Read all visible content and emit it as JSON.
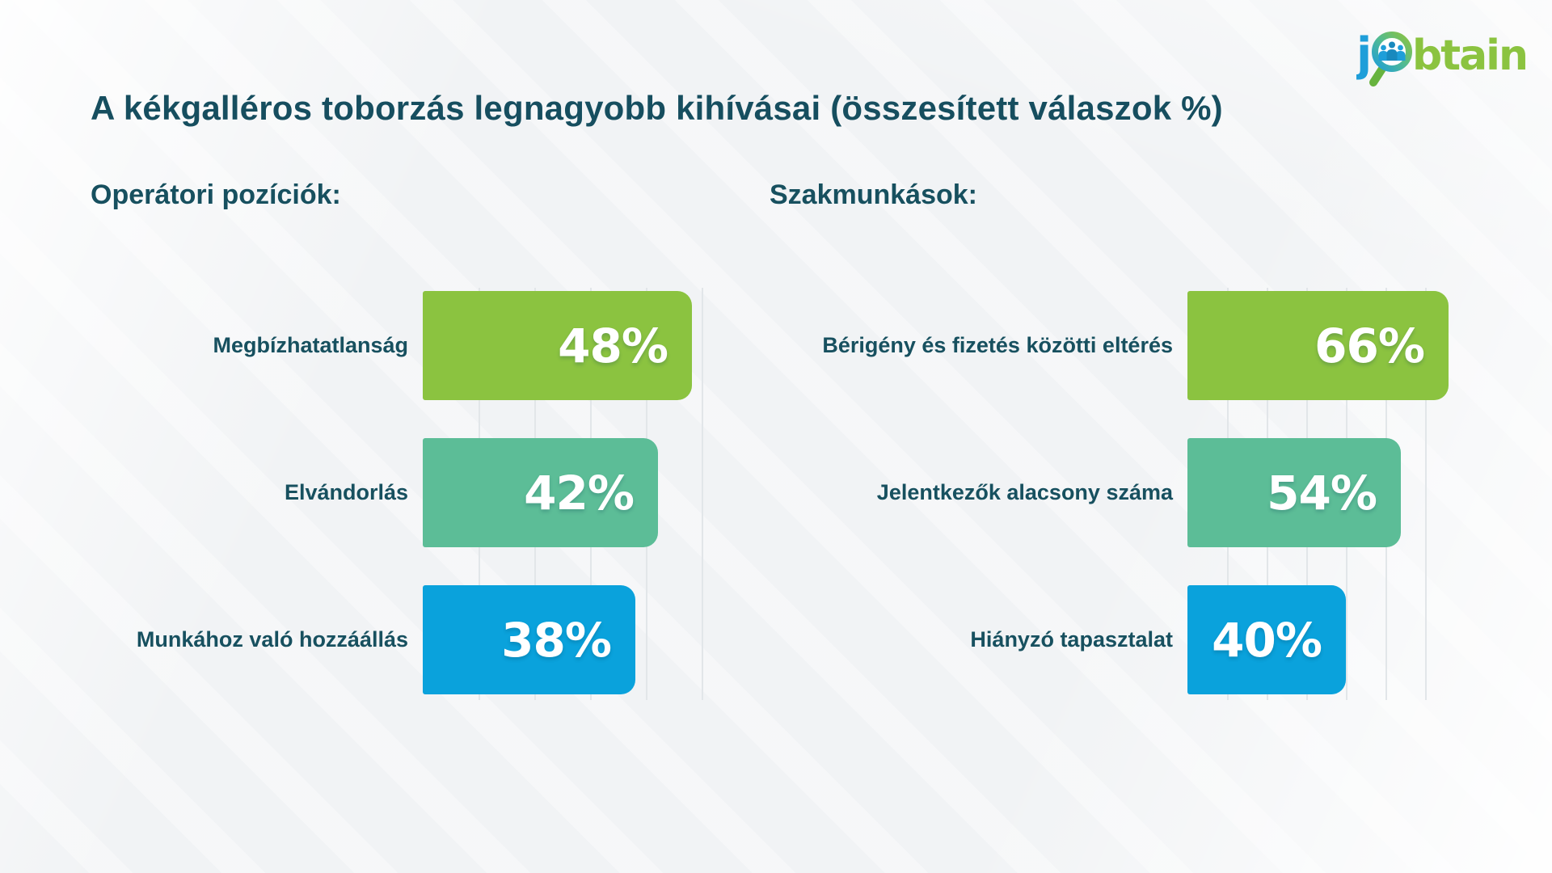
{
  "title": "A kékgalléros toborzás legnagyobb kihívásai (összesített válaszok %)",
  "logo": {
    "name": "jobtain",
    "prefix": "j",
    "suffix": "btain"
  },
  "colors": {
    "heading": "#17505f",
    "green": "#8bc340",
    "teal": "#5cbd97",
    "blue": "#0aa2dc",
    "logo_blue": "#1e9ed9",
    "logo_green": "#8bc340",
    "gridline": "#e2e6e9"
  },
  "chart_data": [
    {
      "type": "bar",
      "orientation": "horizontal",
      "title": "Operátori pozíciók:",
      "categories": [
        "Megbízhatatlanság",
        "Elvándorlás",
        "Munkához való hozzáállás"
      ],
      "values": [
        48,
        42,
        38
      ],
      "value_labels": [
        "48%",
        "42%",
        "38%"
      ],
      "unit": "%",
      "bar_colors": [
        "#8bc340",
        "#5cbd97",
        "#0aa2dc"
      ],
      "xlim": [
        0,
        55
      ],
      "grid": true,
      "grid_step_pct": 10
    },
    {
      "type": "bar",
      "orientation": "horizontal",
      "title": "Szakmunkások:",
      "categories": [
        "Bérigény és fizetés közötti eltérés",
        "Jelentkezők alacsony száma",
        "Hiányzó tapasztalat"
      ],
      "values": [
        66,
        54,
        40
      ],
      "value_labels": [
        "66%",
        "54%",
        "40%"
      ],
      "unit": "%",
      "bar_colors": [
        "#8bc340",
        "#5cbd97",
        "#0aa2dc"
      ],
      "xlim": [
        0,
        70
      ],
      "grid": true,
      "grid_step_pct": 10
    }
  ]
}
